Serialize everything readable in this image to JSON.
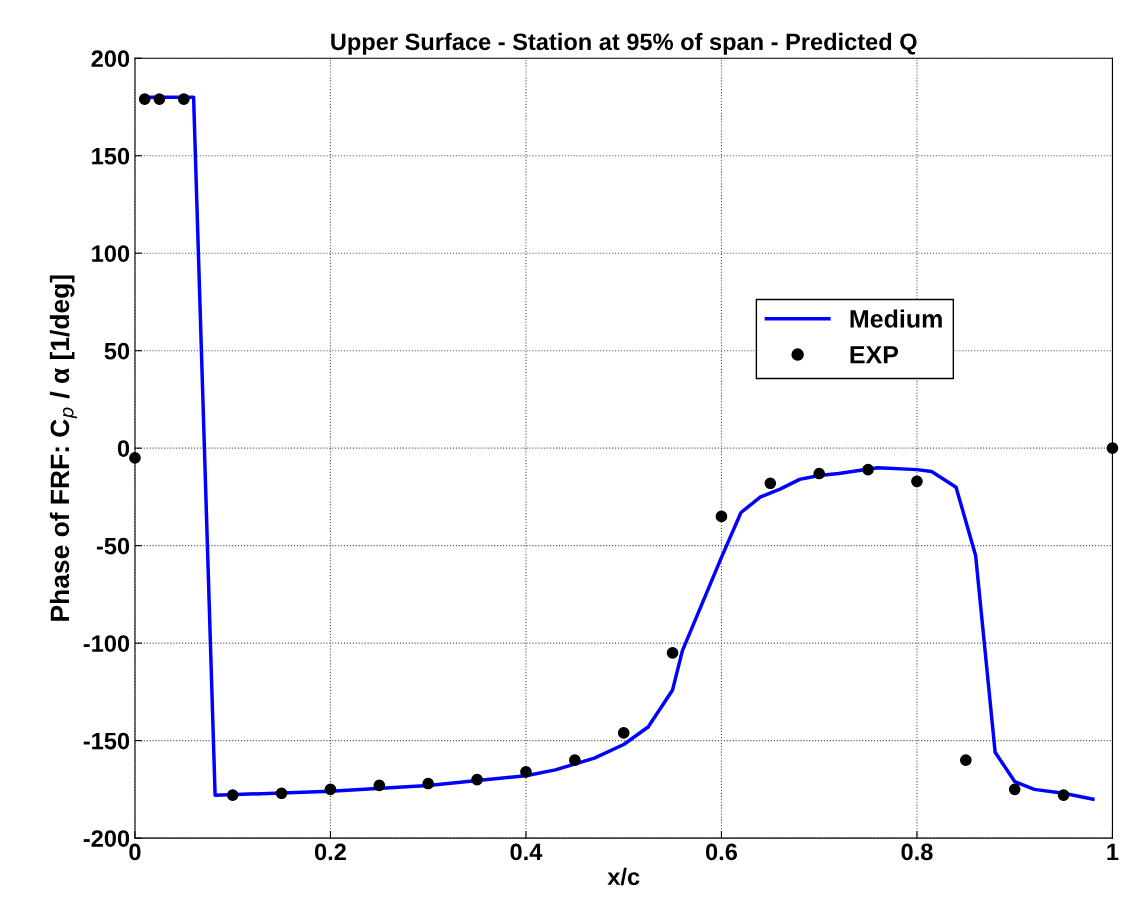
{
  "chart_data": {
    "type": "line",
    "title": "Upper Surface - Station at 95% of span - Predicted Q",
    "xlabel": "x/c",
    "ylabel": "Phase of FRF: C$_{p}$ / α [1/deg]",
    "xlim": [
      0,
      1
    ],
    "xticks": [
      0,
      0.2,
      0.4,
      0.6,
      0.8,
      1
    ],
    "ylim": [
      -200,
      200
    ],
    "yticks": [
      -200,
      -150,
      -100,
      -50,
      0,
      50,
      100,
      150,
      200
    ],
    "grid": true,
    "legend": "center right",
    "series": [
      {
        "name": "Medium",
        "color": "#0000ff",
        "line_style": "solid",
        "marker": "none",
        "x": [
          0.01,
          0.06,
          0.082,
          0.2,
          0.3,
          0.4,
          0.43,
          0.47,
          0.5,
          0.525,
          0.55,
          0.56,
          0.58,
          0.6,
          0.62,
          0.64,
          0.66,
          0.68,
          0.7,
          0.72,
          0.76,
          0.8,
          0.815,
          0.84,
          0.86,
          0.88,
          0.9,
          0.92,
          0.95,
          0.98
        ],
        "values": [
          180,
          180,
          -178,
          -176,
          -173,
          -168,
          -165,
          -159,
          -152,
          -143,
          -124,
          -104,
          -80,
          -56,
          -33,
          -25,
          -21,
          -16,
          -14,
          -13,
          -10,
          -11,
          -12,
          -20,
          -55,
          -156,
          -171,
          -175,
          -177,
          -180
        ]
      },
      {
        "name": "EXP",
        "type": "scatter",
        "color": "#000000",
        "marker": "circle",
        "x": [
          0.0,
          0.01,
          0.025,
          0.05,
          0.1,
          0.15,
          0.2,
          0.25,
          0.3,
          0.35,
          0.4,
          0.45,
          0.5,
          0.55,
          0.6,
          0.65,
          0.7,
          0.75,
          0.8,
          0.85,
          0.9,
          0.95,
          1.0
        ],
        "values": [
          -5,
          179,
          179,
          179,
          -178,
          -177,
          -175,
          -173,
          -172,
          -170,
          -166,
          -160,
          -146,
          -105,
          -35,
          -18,
          -13,
          -11,
          -17,
          -160,
          -175,
          -178,
          0
        ]
      }
    ]
  }
}
